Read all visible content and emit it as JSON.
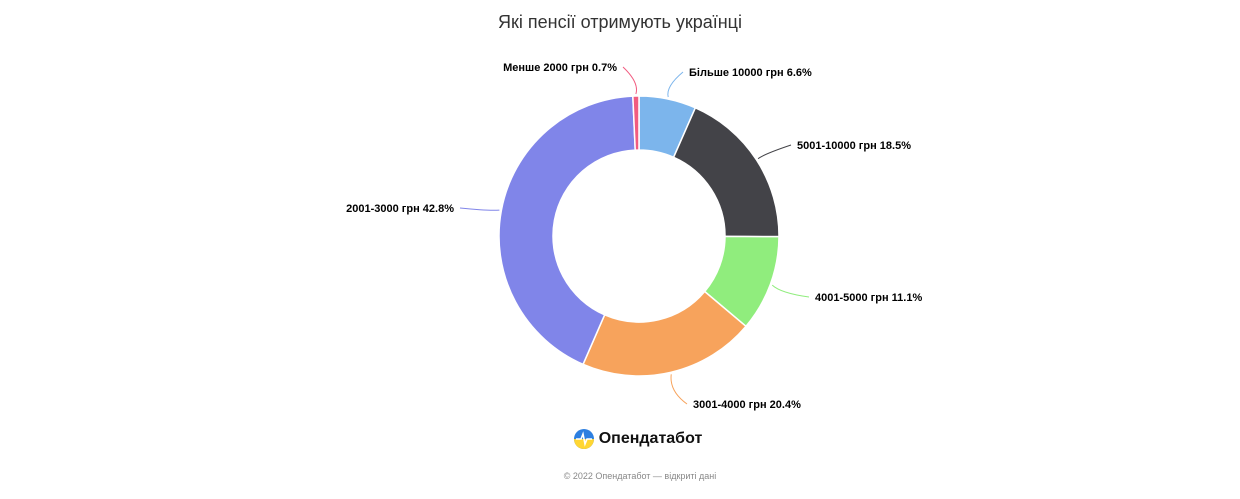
{
  "title": "Які пенсії отримують українці",
  "brand": {
    "name": "Опендатабот",
    "logo_icon": "opendatabot-logo-icon"
  },
  "footer": "© 2022 Опендатабот — відкриті дані",
  "chart_data": {
    "type": "pie",
    "variant": "donut",
    "title": "Які пенсії отримують українці",
    "slices": [
      {
        "label": "Більше 10000 грн",
        "value": 6.6,
        "color": "#7cb5ec"
      },
      {
        "label": "5001-10000 грн",
        "value": 18.5,
        "color": "#434348"
      },
      {
        "label": "4001-5000 грн",
        "value": 11.1,
        "color": "#90ed7d"
      },
      {
        "label": "3001-4000 грн",
        "value": 20.4,
        "color": "#f7a35c"
      },
      {
        "label": "2001-3000 грн",
        "value": 42.8,
        "color": "#8085e9"
      },
      {
        "label": "Менше 2000 грн",
        "value": 0.7,
        "color": "#f15c80"
      }
    ],
    "unit": "%",
    "legend": "none (labels with connectors)"
  }
}
